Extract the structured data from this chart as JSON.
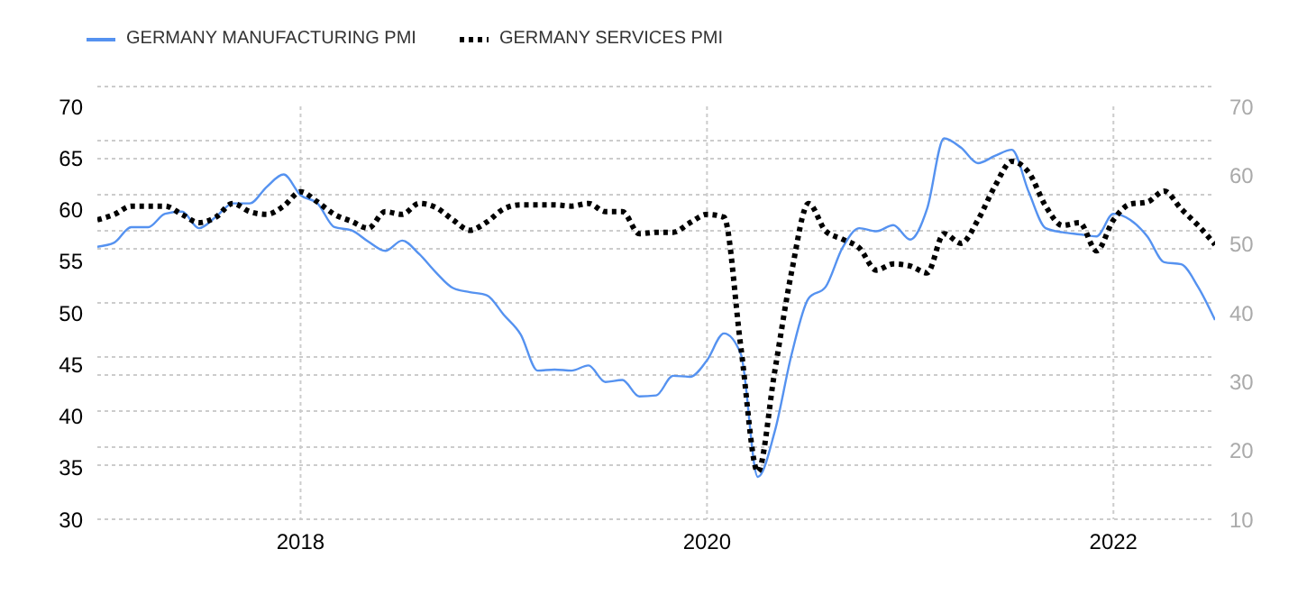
{
  "chart_data": {
    "type": "line",
    "x": [
      "2017-01",
      "2017-02",
      "2017-03",
      "2017-04",
      "2017-05",
      "2017-06",
      "2017-07",
      "2017-08",
      "2017-09",
      "2017-10",
      "2017-11",
      "2017-12",
      "2018-01",
      "2018-02",
      "2018-03",
      "2018-04",
      "2018-05",
      "2018-06",
      "2018-07",
      "2018-08",
      "2018-09",
      "2018-10",
      "2018-11",
      "2018-12",
      "2019-01",
      "2019-02",
      "2019-03",
      "2019-04",
      "2019-05",
      "2019-06",
      "2019-07",
      "2019-08",
      "2019-09",
      "2019-10",
      "2019-11",
      "2019-12",
      "2020-01",
      "2020-02",
      "2020-03",
      "2020-04",
      "2020-05",
      "2020-06",
      "2020-07",
      "2020-08",
      "2020-09",
      "2020-10",
      "2020-11",
      "2020-12",
      "2021-01",
      "2021-02",
      "2021-03",
      "2021-04",
      "2021-05",
      "2021-06",
      "2021-07",
      "2021-08",
      "2021-09",
      "2021-10",
      "2021-11",
      "2021-12",
      "2022-01",
      "2022-02",
      "2022-03",
      "2022-04",
      "2022-05",
      "2022-06",
      "2022-07"
    ],
    "series": [
      {
        "name": "GERMANY MANUFACTURING PMI",
        "color": "#5592f0",
        "line_style": "solid",
        "values": [
          56.4,
          56.8,
          58.3,
          58.3,
          59.6,
          59.8,
          58.2,
          59.3,
          60.6,
          60.6,
          62.2,
          63.4,
          61.4,
          60.6,
          58.3,
          58.0,
          56.9,
          56.0,
          57.0,
          55.7,
          53.9,
          52.4,
          52.0,
          51.7,
          49.8,
          47.9,
          44.4,
          44.5,
          44.4,
          44.9,
          43.3,
          43.5,
          41.9,
          42.0,
          43.9,
          43.8,
          45.4,
          48.0,
          46.0,
          34.1,
          38.5,
          46.0,
          51.4,
          52.5,
          56.3,
          58.2,
          57.9,
          58.5,
          57.1,
          60.1,
          66.9,
          66.0,
          64.5,
          65.2,
          65.8,
          61.7,
          58.2,
          57.8,
          57.6,
          57.4,
          59.6,
          59.0,
          57.4,
          54.9,
          54.7,
          52.5,
          49.3
        ]
      },
      {
        "name": "GERMANY SERVICES PMI",
        "color": "#000000",
        "line_style": "dotted",
        "axis": "y2",
        "values": [
          53.5,
          54.3,
          55.5,
          55.5,
          55.5,
          54.3,
          53.1,
          53.9,
          55.9,
          54.7,
          54.3,
          55.5,
          57.6,
          56.1,
          54.3,
          53.3,
          52.3,
          54.7,
          54.3,
          55.9,
          55.3,
          53.5,
          52.0,
          53.2,
          55.1,
          55.7,
          55.7,
          55.7,
          55.5,
          55.9,
          54.7,
          54.7,
          51.5,
          51.7,
          51.7,
          53.1,
          54.3,
          53.9,
          35.0,
          16.9,
          31.5,
          46.0,
          55.9,
          51.9,
          50.7,
          49.4,
          46.2,
          47.1,
          46.8,
          45.8,
          51.5,
          50.1,
          53.5,
          58.4,
          62.0,
          60.4,
          55.5,
          52.7,
          53.1,
          49.0,
          53.5,
          55.8,
          56.1,
          57.7,
          55.1,
          52.7,
          49.9
        ]
      }
    ],
    "xlim": [
      "2017-01",
      "2022-07"
    ],
    "xticks": [
      {
        "value": "2018",
        "label": "2018"
      },
      {
        "value": "2020",
        "label": "2020"
      },
      {
        "value": "2022",
        "label": "2022"
      }
    ],
    "ylim": [
      30,
      70
    ],
    "yticks": [
      30,
      35,
      40,
      45,
      50,
      55,
      60,
      65,
      70
    ],
    "y2lim": [
      10,
      70
    ],
    "y2ticks": [
      10,
      20,
      30,
      40,
      50,
      60,
      70
    ],
    "grid": true,
    "legend": "top left",
    "marker": "none"
  }
}
